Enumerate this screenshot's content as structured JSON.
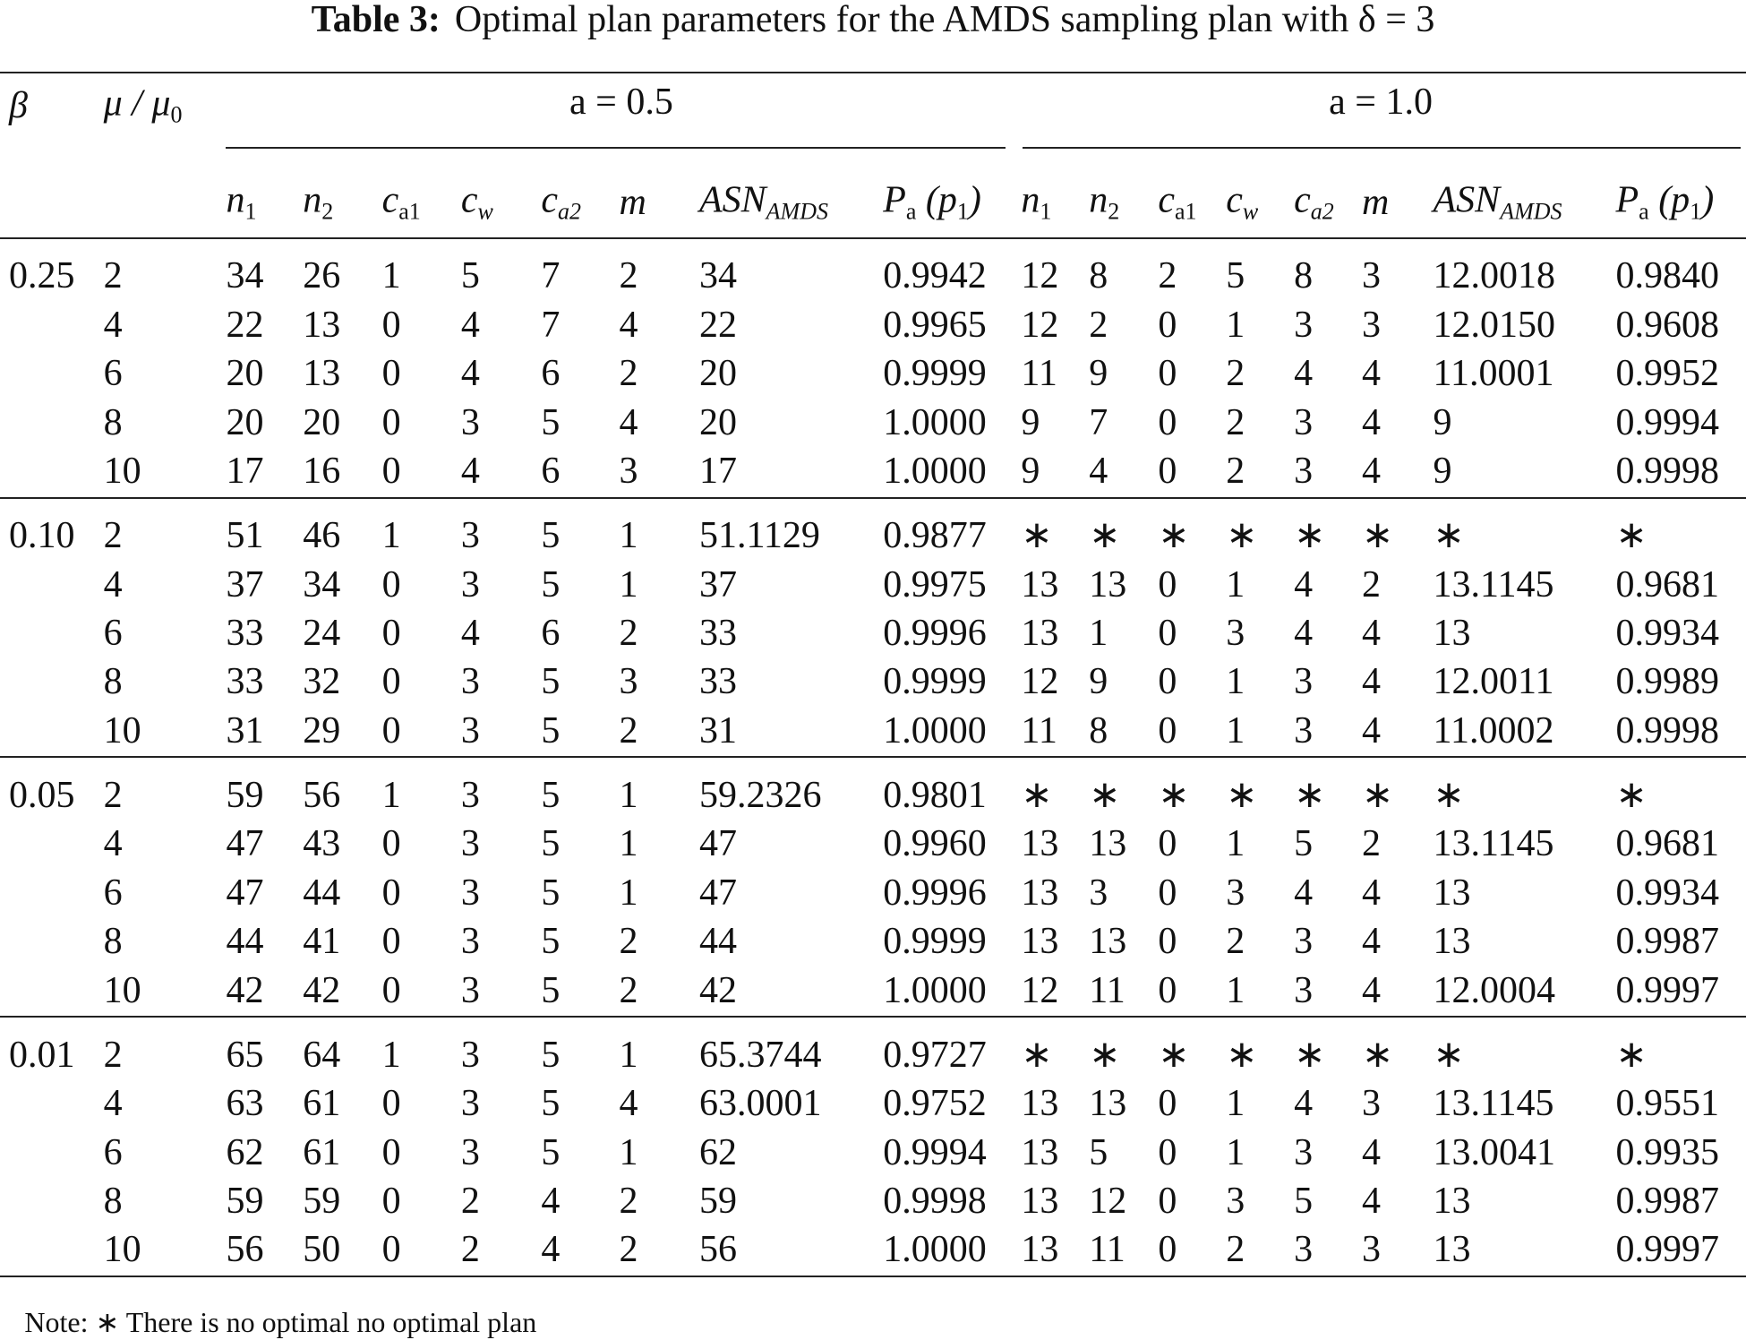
{
  "table": {
    "title_label": "Table 3:",
    "title": "Optimal plan parameters for the AMDS sampling plan with δ = 3",
    "header_beta": "β",
    "header_mu": [
      {
        "text": "μ / μ"
      },
      {
        "sub": "0"
      }
    ],
    "groups": [
      "a = 0.5",
      "a = 1.0"
    ],
    "columns": [
      [
        {
          "text": "n"
        },
        {
          "sub": "1"
        }
      ],
      [
        {
          "text": "n"
        },
        {
          "sub": "2"
        }
      ],
      [
        {
          "text": "c"
        },
        {
          "sub": "a1"
        }
      ],
      [
        {
          "text": "c"
        },
        {
          "sub": "w"
        }
      ],
      [
        {
          "text": "c"
        },
        {
          "sub": "a2"
        }
      ],
      [
        {
          "text": "m"
        }
      ],
      [
        {
          "text": "ASN"
        },
        {
          "sub": "AMDS"
        }
      ],
      [
        {
          "text": "P"
        },
        {
          "sub": "a"
        },
        {
          "text": " (p"
        },
        {
          "sub": "1"
        },
        {
          "text": ")"
        }
      ],
      [
        {
          "text": "n"
        },
        {
          "sub": "1"
        }
      ],
      [
        {
          "text": "n"
        },
        {
          "sub": "2"
        }
      ],
      [
        {
          "text": "c"
        },
        {
          "sub": "a1"
        }
      ],
      [
        {
          "text": "c"
        },
        {
          "sub": "w"
        }
      ],
      [
        {
          "text": "c"
        },
        {
          "sub": "a2"
        }
      ],
      [
        {
          "text": "m"
        }
      ],
      [
        {
          "text": "ASN"
        },
        {
          "sub": "AMDS"
        }
      ],
      [
        {
          "text": "P"
        },
        {
          "sub": "a"
        },
        {
          "text": " (p"
        },
        {
          "sub": "1"
        },
        {
          "text": ")"
        }
      ]
    ],
    "blocks": [
      {
        "beta": "0.25",
        "rows": [
          [
            "2",
            "34",
            "26",
            "1",
            "5",
            "7",
            "2",
            "34",
            "0.9942",
            "12",
            "8",
            "2",
            "5",
            "8",
            "3",
            "12.0018",
            "0.9840"
          ],
          [
            "4",
            "22",
            "13",
            "0",
            "4",
            "7",
            "4",
            "22",
            "0.9965",
            "12",
            "2",
            "0",
            "1",
            "3",
            "3",
            "12.0150",
            "0.9608"
          ],
          [
            "6",
            "20",
            "13",
            "0",
            "4",
            "6",
            "2",
            "20",
            "0.9999",
            "11",
            "9",
            "0",
            "2",
            "4",
            "4",
            "11.0001",
            "0.9952"
          ],
          [
            "8",
            "20",
            "20",
            "0",
            "3",
            "5",
            "4",
            "20",
            "1.0000",
            "9",
            "7",
            "0",
            "2",
            "3",
            "4",
            "9",
            "0.9994"
          ],
          [
            "10",
            "17",
            "16",
            "0",
            "4",
            "6",
            "3",
            "17",
            "1.0000",
            "9",
            "4",
            "0",
            "2",
            "3",
            "4",
            "9",
            "0.9998"
          ]
        ]
      },
      {
        "beta": "0.10",
        "rows": [
          [
            "2",
            "51",
            "46",
            "1",
            "3",
            "5",
            "1",
            "51.1129",
            "0.9877",
            "∗",
            "∗",
            "∗",
            "∗",
            "∗",
            "∗",
            "∗",
            "∗"
          ],
          [
            "4",
            "37",
            "34",
            "0",
            "3",
            "5",
            "1",
            "37",
            "0.9975",
            "13",
            "13",
            "0",
            "1",
            "4",
            "2",
            "13.1145",
            "0.9681"
          ],
          [
            "6",
            "33",
            "24",
            "0",
            "4",
            "6",
            "2",
            "33",
            "0.9996",
            "13",
            "1",
            "0",
            "3",
            "4",
            "4",
            "13",
            "0.9934"
          ],
          [
            "8",
            "33",
            "32",
            "0",
            "3",
            "5",
            "3",
            "33",
            "0.9999",
            "12",
            "9",
            "0",
            "1",
            "3",
            "4",
            "12.0011",
            "0.9989"
          ],
          [
            "10",
            "31",
            "29",
            "0",
            "3",
            "5",
            "2",
            "31",
            "1.0000",
            "11",
            "8",
            "0",
            "1",
            "3",
            "4",
            "11.0002",
            "0.9998"
          ]
        ]
      },
      {
        "beta": "0.05",
        "rows": [
          [
            "2",
            "59",
            "56",
            "1",
            "3",
            "5",
            "1",
            "59.2326",
            "0.9801",
            "∗",
            "∗",
            "∗",
            "∗",
            "∗",
            "∗",
            "∗",
            "∗"
          ],
          [
            "4",
            "47",
            "43",
            "0",
            "3",
            "5",
            "1",
            "47",
            "0.9960",
            "13",
            "13",
            "0",
            "1",
            "5",
            "2",
            "13.1145",
            "0.9681"
          ],
          [
            "6",
            "47",
            "44",
            "0",
            "3",
            "5",
            "1",
            "47",
            "0.9996",
            "13",
            "3",
            "0",
            "3",
            "4",
            "4",
            "13",
            "0.9934"
          ],
          [
            "8",
            "44",
            "41",
            "0",
            "3",
            "5",
            "2",
            "44",
            "0.9999",
            "13",
            "13",
            "0",
            "2",
            "3",
            "4",
            "13",
            "0.9987"
          ],
          [
            "10",
            "42",
            "42",
            "0",
            "3",
            "5",
            "2",
            "42",
            "1.0000",
            "12",
            "11",
            "0",
            "1",
            "3",
            "4",
            "12.0004",
            "0.9997"
          ]
        ]
      },
      {
        "beta": "0.01",
        "rows": [
          [
            "2",
            "65",
            "64",
            "1",
            "3",
            "5",
            "1",
            "65.3744",
            "0.9727",
            "∗",
            "∗",
            "∗",
            "∗",
            "∗",
            "∗",
            "∗",
            "∗"
          ],
          [
            "4",
            "63",
            "61",
            "0",
            "3",
            "5",
            "4",
            "63.0001",
            "0.9752",
            "13",
            "13",
            "0",
            "1",
            "4",
            "3",
            "13.1145",
            "0.9551"
          ],
          [
            "6",
            "62",
            "61",
            "0",
            "3",
            "5",
            "1",
            "62",
            "0.9994",
            "13",
            "5",
            "0",
            "1",
            "3",
            "4",
            "13.0041",
            "0.9935"
          ],
          [
            "8",
            "59",
            "59",
            "0",
            "2",
            "4",
            "2",
            "59",
            "0.9998",
            "13",
            "12",
            "0",
            "3",
            "5",
            "4",
            "13",
            "0.9987"
          ],
          [
            "10",
            "56",
            "50",
            "0",
            "2",
            "4",
            "2",
            "56",
            "1.0000",
            "13",
            "11",
            "0",
            "2",
            "3",
            "3",
            "13",
            "0.9997"
          ]
        ]
      }
    ],
    "note": "Note: ∗ There is no optimal no optimal plan"
  }
}
